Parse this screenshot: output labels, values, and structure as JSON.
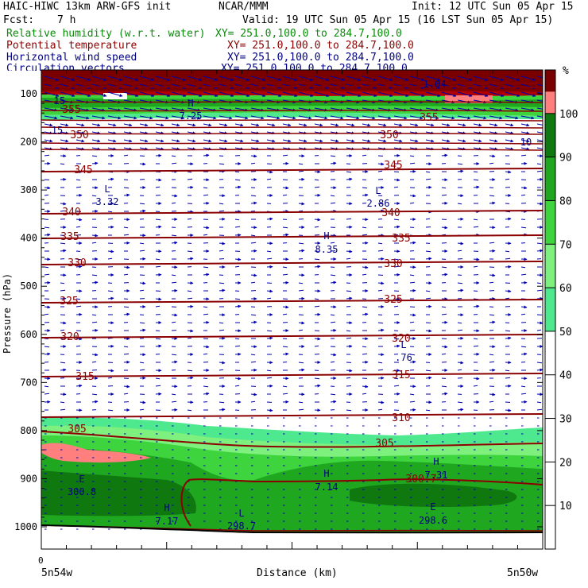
{
  "header": {
    "model": "HAIC-HIWC 13km ARW-GFS init",
    "org": "NCAR/MMM",
    "init": "Init: 12 UTC Sun 05 Apr 15",
    "fcst_label": "Fcst:",
    "fcst_value": "7 h",
    "valid": "Valid: 19 UTC Sun 05 Apr 15 (16 LST Sun 05 Apr 15)",
    "fields": [
      {
        "name": "Relative humidity (w.r.t. water)",
        "xy": "XY= 251.0,100.0 to 284.7,100.0",
        "color": "#0a8a0a"
      },
      {
        "name": "Potential temperature",
        "xy": "XY= 251.0,100.0 to 284.7,100.0",
        "color": "#8b0000"
      },
      {
        "name": "Horizontal wind speed",
        "xy": "XY= 251.0,100.0 to 284.7,100.0",
        "color": "#000080"
      },
      {
        "name": "Circulation vectors",
        "xy": "XY= 251.0,100.0 to 284.7,100.0",
        "color": "#000080"
      }
    ]
  },
  "chart_data": {
    "type": "heatmap",
    "ylabel": "Pressure (hPa)",
    "xlabel": "Distance (km)",
    "x_left_label": "5n54w",
    "x_right_label": "5n50w",
    "x_origin_label": "0",
    "y_ticks": [
      100,
      200,
      300,
      400,
      500,
      600,
      700,
      800,
      900,
      1000
    ],
    "ylim": [
      50,
      1050
    ],
    "colorbar": {
      "unit": "%",
      "ticks": [
        10,
        20,
        30,
        40,
        50,
        60,
        70,
        80,
        90,
        100
      ],
      "bands": [
        {
          "from": 50,
          "to": 60,
          "color": "#4ee88e"
        },
        {
          "from": 60,
          "to": 70,
          "color": "#7ef07e"
        },
        {
          "from": 70,
          "to": 80,
          "color": "#3ed43e"
        },
        {
          "from": 80,
          "to": 90,
          "color": "#1fa81f"
        },
        {
          "from": 90,
          "to": 100,
          "color": "#0f780f"
        },
        {
          "from": 100,
          "to": 105,
          "color": "#ff7f7f"
        },
        {
          "from": 105,
          "to": 110,
          "color": "#7a0000"
        }
      ]
    },
    "theta_contours": [
      {
        "label": "345",
        "p": 212
      },
      {
        "label": "340",
        "p": 268
      },
      {
        "label": "335",
        "p": 300
      },
      {
        "label": "330",
        "p": 332
      },
      {
        "label": "325",
        "p": 378
      },
      {
        "label": "320",
        "p": 425
      },
      {
        "label": "315",
        "p": 473
      },
      {
        "label": "310",
        "p": 524
      },
      {
        "label": "305",
        "p": 555
      },
      {
        "label": "300.7",
        "p": 602
      }
    ],
    "theta_labels": [
      {
        "text": "355",
        "x": 90,
        "y": 142
      },
      {
        "text": "350",
        "x": 100,
        "y": 174
      },
      {
        "text": "350",
        "x": 490,
        "y": 174
      },
      {
        "text": "345",
        "x": 105,
        "y": 218
      },
      {
        "text": "345",
        "x": 495,
        "y": 212
      },
      {
        "text": "340",
        "x": 90,
        "y": 271
      },
      {
        "text": "340",
        "x": 492,
        "y": 272
      },
      {
        "text": "335",
        "x": 88,
        "y": 302
      },
      {
        "text": "335",
        "x": 505,
        "y": 304
      },
      {
        "text": "330",
        "x": 97,
        "y": 335
      },
      {
        "text": "330",
        "x": 495,
        "y": 336
      },
      {
        "text": "325",
        "x": 87,
        "y": 383
      },
      {
        "text": "325",
        "x": 495,
        "y": 381
      },
      {
        "text": "320",
        "x": 88,
        "y": 428
      },
      {
        "text": "320",
        "x": 505,
        "y": 430
      },
      {
        "text": "315",
        "x": 107,
        "y": 478
      },
      {
        "text": "315",
        "x": 505,
        "y": 476
      },
      {
        "text": "310",
        "x": 505,
        "y": 530
      },
      {
        "text": "305",
        "x": 97,
        "y": 544
      },
      {
        "text": "305",
        "x": 484,
        "y": 562
      },
      {
        "text": "355",
        "x": 540,
        "y": 152
      },
      {
        "text": "300.7",
        "x": 530,
        "y": 607
      }
    ],
    "extrema": [
      {
        "letter": "L",
        "value": "3.32",
        "x": 135,
        "y": 242,
        "vy": 258
      },
      {
        "letter": "L",
        "value": "2.86",
        "x": 476,
        "y": 244,
        "vy": 260
      },
      {
        "letter": "H",
        "value": "8.35",
        "x": 411,
        "y": 301,
        "vy": 318
      },
      {
        "letter": "L",
        "value": ".76",
        "x": 508,
        "y": 438,
        "vy": 454
      },
      {
        "letter": "H",
        "value": "7.14",
        "x": 411,
        "y": 600,
        "vy": 617
      },
      {
        "letter": "H",
        "value": "7.31",
        "x": 549,
        "y": 585,
        "vy": 602
      },
      {
        "letter": "H",
        "value": "7.17",
        "x": 210,
        "y": 643,
        "vy": 660
      },
      {
        "letter": "E",
        "value": "300.8",
        "x": 103,
        "y": 607,
        "vy": 623
      },
      {
        "letter": "L",
        "value": "298.7",
        "x": 304,
        "y": 650,
        "vy": 666
      },
      {
        "letter": "E",
        "value": "298.6",
        "x": 545,
        "y": 642,
        "vy": 659
      },
      {
        "letter": "H",
        "value": "7.25",
        "x": 240,
        "y": 134,
        "vy": 150
      },
      {
        "letter": "",
        "value": "1.04",
        "x": 547,
        "y": 110,
        "vy": 110
      },
      {
        "letter": "",
        "value": "10",
        "x": 662,
        "y": 183,
        "vy": 183
      },
      {
        "letter": "",
        "value": "15",
        "x": 72,
        "y": 168,
        "vy": 168
      },
      {
        "letter": "",
        "value": "15",
        "x": 75,
        "y": 131,
        "vy": 131
      }
    ]
  }
}
